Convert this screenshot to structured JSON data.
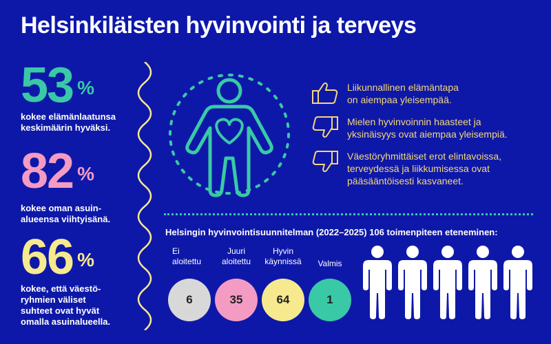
{
  "title": "Helsinkiläisten hyvinvointi ja terveys",
  "colors": {
    "background": "#0e18a8",
    "teal": "#39c9a6",
    "pink": "#f49bc4",
    "yellow": "#f7e98e",
    "grey": "#d8d8d8",
    "gold": "#f4d778"
  },
  "stats": [
    {
      "value": "53",
      "unit": "%",
      "color": "#39c9a6",
      "desc_lines": [
        "kokee elämänlaatunsa",
        "keskimäärin hyväksi."
      ]
    },
    {
      "value": "82",
      "unit": "%",
      "color": "#f49bc4",
      "desc_lines": [
        "kokee oman asuin-",
        "alueensa viihtyisänä."
      ]
    },
    {
      "value": "66",
      "unit": "%",
      "color": "#f7e98e",
      "desc_lines": [
        "kokee, että väestö-",
        "ryhmien väliset",
        "suhteet ovat hyvät",
        "omalla asuinalueella."
      ]
    }
  ],
  "points": [
    {
      "icon": "thumbs-up-icon",
      "lines": [
        "Liikunnallinen elämäntapa",
        "on aiempaa yleisempää."
      ]
    },
    {
      "icon": "thumbs-down-icon",
      "lines": [
        "Mielen hyvinvoinnin haasteet ja",
        "yksinäisyys ovat aiempaa yleisempiä."
      ]
    },
    {
      "icon": "thumbs-down-icon",
      "lines": [
        "Väestöryhmittäiset erot elintavoissa,",
        "terveydessä ja liikkumisessa ovat",
        "pääsääntöisesti kasvaneet."
      ]
    }
  ],
  "plan": {
    "title": "Helsingin hyvinvointisuunnitelman (2022–2025) 106 toimenpiteen eteneminen:",
    "items": [
      {
        "label_lines": [
          "Ei",
          "aloitettu"
        ],
        "value": "6",
        "color": "#d8d8d8"
      },
      {
        "label_lines": [
          "Juuri",
          "aloitettu"
        ],
        "value": "35",
        "color": "#f49bc4"
      },
      {
        "label_lines": [
          "Hyvin",
          "käynnissä"
        ],
        "value": "64",
        "color": "#f7e98e"
      },
      {
        "label_lines": [
          "Valmis"
        ],
        "value": "1",
        "color": "#39c9a6"
      }
    ]
  }
}
